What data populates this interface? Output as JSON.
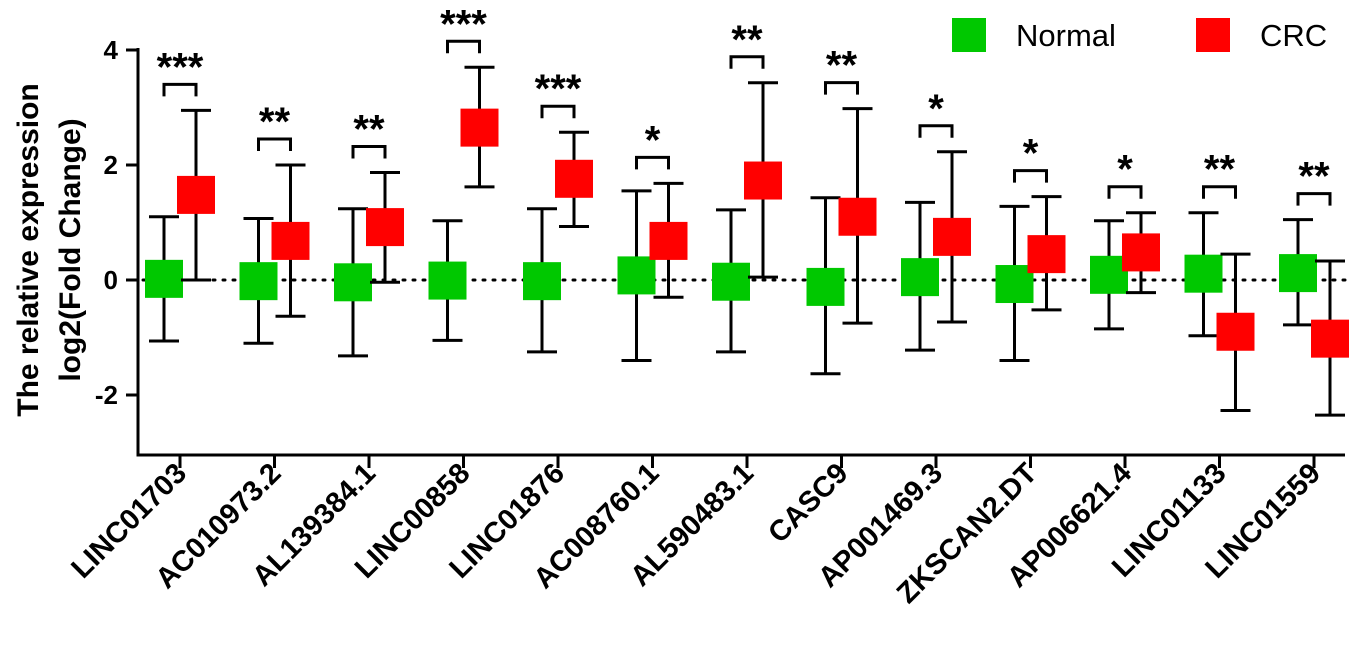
{
  "chart_data": {
    "type": "scatter",
    "title": "",
    "xlabel": "",
    "ylabel_lines": [
      "The relative expression",
      "log2(Fold Change)"
    ],
    "ylim": [
      -3,
      4
    ],
    "yticks": [
      "4",
      "2",
      "0",
      "-2"
    ],
    "categories": [
      "LINC01703",
      "AC010973.2",
      "AL139384.1",
      "LINC00858",
      "LINC01876",
      "AC008760.1",
      "AL590483.1",
      "CASC9",
      "AP001469.3",
      "ZKSCAN2.DT",
      "AP006621.4",
      "LINC01133",
      "LINC01559"
    ],
    "significance": [
      "***",
      "**",
      "**",
      "***",
      "***",
      "*",
      "**",
      "**",
      "*",
      "*",
      "*",
      "**",
      "**"
    ],
    "legend": {
      "position": "top-right",
      "items": [
        {
          "label": "Normal",
          "color": "#00c800"
        },
        {
          "label": "CRC",
          "color": "#ff0000"
        }
      ]
    },
    "series": [
      {
        "name": "Normal",
        "color": "#00c800",
        "values": [
          0.02,
          -0.02,
          -0.04,
          -0.01,
          -0.02,
          0.08,
          -0.03,
          -0.12,
          0.05,
          -0.07,
          0.09,
          0.11,
          0.12
        ],
        "err_low": [
          -1.06,
          -1.1,
          -1.32,
          -1.05,
          -1.25,
          -1.4,
          -1.25,
          -1.63,
          -1.22,
          -1.4,
          -0.85,
          -0.97,
          -0.78
        ],
        "err_high": [
          1.1,
          1.07,
          1.24,
          1.03,
          1.24,
          1.55,
          1.22,
          1.43,
          1.35,
          1.28,
          1.03,
          1.17,
          1.05
        ]
      },
      {
        "name": "CRC",
        "color": "#ff0000",
        "values": [
          1.48,
          0.68,
          0.92,
          2.65,
          1.76,
          0.68,
          1.73,
          1.1,
          0.75,
          0.45,
          0.48,
          -0.9,
          -1.02
        ],
        "err_low": [
          0.0,
          -0.63,
          -0.04,
          1.62,
          0.93,
          -0.3,
          0.05,
          -0.75,
          -0.73,
          -0.52,
          -0.22,
          -2.27,
          -2.35
        ],
        "err_high": [
          2.95,
          2.0,
          1.87,
          3.7,
          2.57,
          1.68,
          3.43,
          2.98,
          2.23,
          1.45,
          1.17,
          0.45,
          0.33
        ]
      }
    ]
  }
}
